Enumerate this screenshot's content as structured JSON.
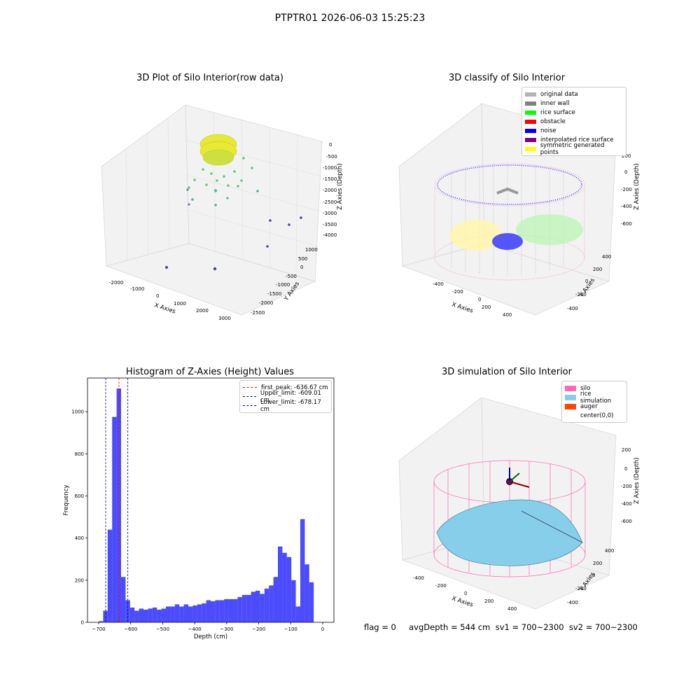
{
  "suptitle": "PTPTR01 2026-06-03 15:25:23",
  "panels": {
    "raw": {
      "title": "3D Plot of Silo Interior(row data)",
      "xlabel": "X Axies",
      "ylabel": "Y Axies",
      "zlabel": "Z Axies (Depth)",
      "xticks": [
        "-2000",
        "-1000",
        "0",
        "1000",
        "2000",
        "3000"
      ],
      "yticks": [
        "1000",
        "500",
        "0",
        "-500",
        "-1000",
        "-1500",
        "-2000",
        "-2500"
      ],
      "zticks": [
        "0",
        "-500",
        "-1000",
        "-1500",
        "-2000",
        "-2500",
        "-3000",
        "-3500",
        "-4000"
      ]
    },
    "classify": {
      "title": "3D classify of Silo Interior",
      "xlabel": "X Axies",
      "ylabel": "Y Axies",
      "zlabel": "Z Axies (Depth)",
      "xticks": [
        "-400",
        "-200",
        "0",
        "200",
        "400"
      ],
      "yticks": [
        "400",
        "200",
        "0",
        "-200",
        "-400"
      ],
      "zticks": [
        "200",
        "0",
        "-200",
        "-400",
        "-600"
      ],
      "legend": [
        {
          "label": "original data",
          "color": "#b3b3b3"
        },
        {
          "label": "inner wall",
          "color": "#808080"
        },
        {
          "label": "rice surface",
          "color": "#00ff00"
        },
        {
          "label": "obstacle",
          "color": "#ff0000"
        },
        {
          "label": "noise",
          "color": "#0000ff"
        },
        {
          "label": "interpolated rice surface",
          "color": "#800080"
        },
        {
          "label": "symmetric generated points",
          "color": "#ffff00"
        }
      ]
    },
    "simulation": {
      "title": "3D simulation of Silo Interior",
      "xlabel": "X Axies",
      "ylabel": "Y Axies",
      "zlabel": "Z Axies (Depth)",
      "xticks": [
        "-400",
        "-200",
        "0",
        "200",
        "400"
      ],
      "yticks": [
        "400",
        "200",
        "0",
        "-200",
        "-400"
      ],
      "zticks": [
        "200",
        "0",
        "-200",
        "-400",
        "-600"
      ],
      "legend": [
        {
          "label": "silo",
          "color": "#ff69b4"
        },
        {
          "label": "rice simulation",
          "color": "#87ceeb"
        },
        {
          "label": "auger",
          "color": "#ff4500"
        },
        {
          "label": "center(0,0)",
          "color": "#ffffff"
        }
      ]
    }
  },
  "footer": "flag = 0     avgDepth = 544 cm  sv1 = 700~2300  sv2 = 700~2300",
  "chart_data": {
    "type": "bar",
    "title": "Histogram of Z-Axies (Height) Values",
    "xlabel": "Depth (cm)",
    "ylabel": "Frequency",
    "xlim": [
      -735,
      35
    ],
    "ylim": [
      0,
      1160
    ],
    "xticks": [
      -700,
      -600,
      -500,
      -400,
      -300,
      -200,
      -100,
      0
    ],
    "yticks": [
      0,
      200,
      400,
      600,
      800,
      1000
    ],
    "bar_color": "#0000ff",
    "bin_start": -700,
    "bin_width": 14,
    "values": [
      5,
      55,
      440,
      975,
      1110,
      215,
      105,
      70,
      55,
      65,
      60,
      65,
      70,
      60,
      65,
      75,
      75,
      85,
      75,
      85,
      75,
      80,
      85,
      90,
      105,
      100,
      105,
      105,
      110,
      110,
      110,
      120,
      130,
      130,
      145,
      150,
      135,
      160,
      175,
      215,
      360,
      330,
      310,
      200,
      75,
      490,
      275,
      190
    ],
    "series_lines": [
      {
        "name": "first_peak: -636.67 cm",
        "x": -636.67,
        "color": "#ff0000"
      },
      {
        "name": "Upper_limit: -609.01 cm",
        "x": -609.01,
        "color": "#0000aa"
      },
      {
        "name": "Lower_limit: -678.17 cm",
        "x": -678.17,
        "color": "#0000aa"
      }
    ]
  }
}
